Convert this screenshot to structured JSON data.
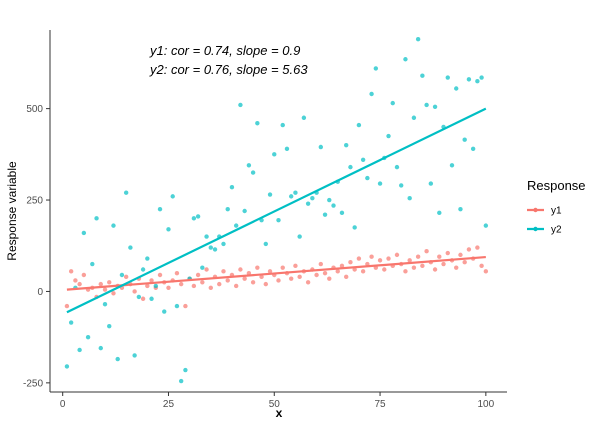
{
  "chart_data": {
    "type": "scatter",
    "title": "",
    "xlabel": "x",
    "ylabel": "Response variable",
    "xlim": [
      -3,
      105
    ],
    "ylim": [
      -275,
      715
    ],
    "xticks": [
      0,
      25,
      50,
      75,
      100
    ],
    "yticks": [
      -250,
      0,
      250,
      500
    ],
    "grid": false,
    "legend_position": "right",
    "legend_title": "Response",
    "annotations": [
      "y1: cor = 0.74, slope = 0.9",
      "y2: cor = 0.76, slope = 5.63"
    ],
    "series": [
      {
        "name": "y1",
        "color": "#f8766d",
        "fit_line": {
          "x": [
            1,
            100
          ],
          "y": [
            5,
            94
          ]
        },
        "points": [
          [
            1,
            -40
          ],
          [
            2,
            55
          ],
          [
            3,
            30
          ],
          [
            4,
            20
          ],
          [
            5,
            45
          ],
          [
            6,
            5
          ],
          [
            7,
            10
          ],
          [
            8,
            -15
          ],
          [
            9,
            20
          ],
          [
            10,
            5
          ],
          [
            11,
            25
          ],
          [
            12,
            -5
          ],
          [
            13,
            15
          ],
          [
            14,
            10
          ],
          [
            15,
            40
          ],
          [
            16,
            20
          ],
          [
            17,
            0
          ],
          [
            18,
            35
          ],
          [
            19,
            -20
          ],
          [
            20,
            15
          ],
          [
            21,
            30
          ],
          [
            22,
            10
          ],
          [
            23,
            45
          ],
          [
            24,
            25
          ],
          [
            25,
            10
          ],
          [
            26,
            30
          ],
          [
            27,
            50
          ],
          [
            28,
            20
          ],
          [
            29,
            -40
          ],
          [
            30,
            35
          ],
          [
            31,
            15
          ],
          [
            32,
            45
          ],
          [
            33,
            25
          ],
          [
            34,
            60
          ],
          [
            35,
            10
          ],
          [
            36,
            40
          ],
          [
            37,
            20
          ],
          [
            38,
            55
          ],
          [
            39,
            30
          ],
          [
            40,
            45
          ],
          [
            41,
            15
          ],
          [
            42,
            60
          ],
          [
            43,
            35
          ],
          [
            44,
            50
          ],
          [
            45,
            25
          ],
          [
            46,
            65
          ],
          [
            47,
            40
          ],
          [
            48,
            20
          ],
          [
            49,
            55
          ],
          [
            50,
            45
          ],
          [
            51,
            30
          ],
          [
            52,
            65
          ],
          [
            53,
            50
          ],
          [
            54,
            35
          ],
          [
            55,
            70
          ],
          [
            56,
            40
          ],
          [
            57,
            55
          ],
          [
            58,
            25
          ],
          [
            59,
            60
          ],
          [
            60,
            45
          ],
          [
            61,
            75
          ],
          [
            62,
            50
          ],
          [
            63,
            35
          ],
          [
            64,
            65
          ],
          [
            65,
            55
          ],
          [
            66,
            70
          ],
          [
            67,
            40
          ],
          [
            68,
            80
          ],
          [
            69,
            60
          ],
          [
            70,
            90
          ],
          [
            71,
            55
          ],
          [
            72,
            75
          ],
          [
            73,
            95
          ],
          [
            74,
            65
          ],
          [
            75,
            85
          ],
          [
            76,
            60
          ],
          [
            77,
            90
          ],
          [
            78,
            70
          ],
          [
            79,
            100
          ],
          [
            80,
            75
          ],
          [
            81,
            55
          ],
          [
            82,
            85
          ],
          [
            83,
            65
          ],
          [
            84,
            95
          ],
          [
            85,
            70
          ],
          [
            86,
            110
          ],
          [
            87,
            80
          ],
          [
            88,
            60
          ],
          [
            89,
            95
          ],
          [
            90,
            75
          ],
          [
            91,
            105
          ],
          [
            92,
            85
          ],
          [
            93,
            65
          ],
          [
            94,
            100
          ],
          [
            95,
            80
          ],
          [
            96,
            115
          ],
          [
            97,
            90
          ],
          [
            98,
            120
          ],
          [
            99,
            70
          ],
          [
            100,
            55
          ]
        ]
      },
      {
        "name": "y2",
        "color": "#00bfc4",
        "fit_line": {
          "x": [
            1,
            100
          ],
          "y": [
            -57,
            500
          ]
        },
        "points": [
          [
            1,
            -205
          ],
          [
            2,
            -85
          ],
          [
            3,
            10
          ],
          [
            4,
            -160
          ],
          [
            5,
            160
          ],
          [
            6,
            -125
          ],
          [
            7,
            75
          ],
          [
            8,
            200
          ],
          [
            9,
            -155
          ],
          [
            10,
            -35
          ],
          [
            11,
            -95
          ],
          [
            12,
            180
          ],
          [
            13,
            -185
          ],
          [
            14,
            45
          ],
          [
            15,
            270
          ],
          [
            16,
            120
          ],
          [
            17,
            -175
          ],
          [
            18,
            -15
          ],
          [
            19,
            60
          ],
          [
            20,
            90
          ],
          [
            21,
            -20
          ],
          [
            22,
            15
          ],
          [
            23,
            225
          ],
          [
            24,
            -55
          ],
          [
            25,
            170
          ],
          [
            26,
            260
          ],
          [
            27,
            -40
          ],
          [
            28,
            -245
          ],
          [
            29,
            -215
          ],
          [
            30,
            35
          ],
          [
            31,
            200
          ],
          [
            32,
            205
          ],
          [
            33,
            65
          ],
          [
            34,
            150
          ],
          [
            35,
            120
          ],
          [
            36,
            115
          ],
          [
            37,
            150
          ],
          [
            38,
            130
          ],
          [
            39,
            225
          ],
          [
            40,
            285
          ],
          [
            41,
            180
          ],
          [
            42,
            510
          ],
          [
            43,
            220
          ],
          [
            44,
            345
          ],
          [
            45,
            325
          ],
          [
            46,
            460
          ],
          [
            47,
            195
          ],
          [
            48,
            130
          ],
          [
            49,
            265
          ],
          [
            50,
            375
          ],
          [
            51,
            195
          ],
          [
            52,
            455
          ],
          [
            53,
            390
          ],
          [
            54,
            260
          ],
          [
            55,
            270
          ],
          [
            56,
            150
          ],
          [
            57,
            475
          ],
          [
            58,
            240
          ],
          [
            59,
            255
          ],
          [
            60,
            270
          ],
          [
            61,
            395
          ],
          [
            62,
            210
          ],
          [
            63,
            250
          ],
          [
            64,
            235
          ],
          [
            65,
            300
          ],
          [
            66,
            215
          ],
          [
            67,
            400
          ],
          [
            68,
            340
          ],
          [
            69,
            175
          ],
          [
            70,
            455
          ],
          [
            71,
            360
          ],
          [
            72,
            310
          ],
          [
            73,
            540
          ],
          [
            74,
            610
          ],
          [
            75,
            295
          ],
          [
            76,
            365
          ],
          [
            77,
            425
          ],
          [
            78,
            515
          ],
          [
            79,
            340
          ],
          [
            80,
            290
          ],
          [
            81,
            635
          ],
          [
            82,
            255
          ],
          [
            83,
            475
          ],
          [
            84,
            690
          ],
          [
            85,
            590
          ],
          [
            86,
            510
          ],
          [
            87,
            295
          ],
          [
            88,
            505
          ],
          [
            89,
            215
          ],
          [
            90,
            450
          ],
          [
            91,
            585
          ],
          [
            92,
            345
          ],
          [
            93,
            555
          ],
          [
            94,
            225
          ],
          [
            95,
            415
          ],
          [
            96,
            580
          ],
          [
            97,
            390
          ],
          [
            98,
            575
          ],
          [
            99,
            585
          ],
          [
            100,
            180
          ]
        ]
      }
    ]
  }
}
